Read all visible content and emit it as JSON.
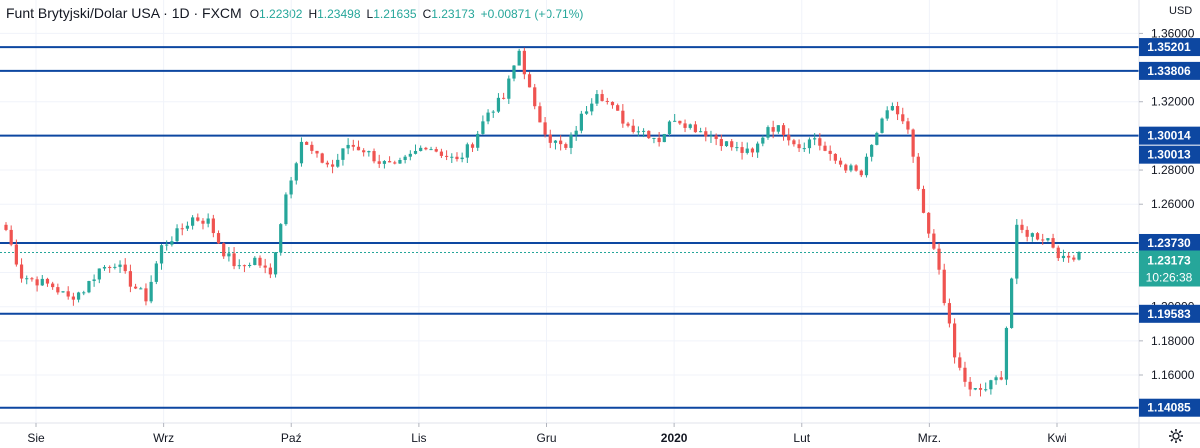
{
  "header": {
    "symbol": "Funt Brytyjski/Dolar USA · 1D · FXCM",
    "open_label": "O",
    "open": "1.22302",
    "high_label": "H",
    "high": "1.23498",
    "low_label": "L",
    "low": "1.21635",
    "close_label": "C",
    "close": "1.23173",
    "change": "+0.00871 (+0.71%)"
  },
  "currency": "USD",
  "countdown": "10:26:38",
  "chart_data": {
    "type": "candlestick",
    "y_ticks": [
      1.16,
      1.18,
      1.2,
      1.22,
      1.26,
      1.28,
      1.32,
      1.36
    ],
    "x_labels": [
      "Sie",
      "Wrz",
      "Paź",
      "Lis",
      "Gru",
      "2020",
      "Lut",
      "Mrz.",
      "Kwi"
    ],
    "ylim": [
      1.136,
      1.362
    ],
    "levels": [
      1.35201,
      1.33806,
      1.30014,
      1.30013,
      1.2373,
      1.19583,
      1.14085
    ],
    "last_price": 1.23173,
    "colors": {
      "up": "#26a69a",
      "down": "#ef5350",
      "level": "#0d47a1",
      "label_bg": "#0d47a1",
      "last_bg": "#26a69a"
    },
    "anchors": [
      1.245,
      1.218,
      1.215,
      1.212,
      1.205,
      1.21,
      1.222,
      1.226,
      1.214,
      1.205,
      1.235,
      1.243,
      1.252,
      1.25,
      1.232,
      1.222,
      1.228,
      1.218,
      1.266,
      1.297,
      1.287,
      1.282,
      1.295,
      1.292,
      1.285,
      1.281,
      1.288,
      1.295,
      1.29,
      1.285,
      1.296,
      1.314,
      1.322,
      1.35,
      1.315,
      1.298,
      1.292,
      1.311,
      1.327,
      1.316,
      1.306,
      1.303,
      1.298,
      1.311,
      1.306,
      1.302,
      1.297,
      1.292,
      1.289,
      1.306,
      1.303,
      1.294,
      1.299,
      1.287,
      1.282,
      1.277,
      1.302,
      1.318,
      1.302,
      1.252,
      1.222,
      1.17,
      1.15,
      1.152,
      1.16,
      1.245,
      1.242,
      1.24,
      1.227,
      1.232
    ]
  }
}
